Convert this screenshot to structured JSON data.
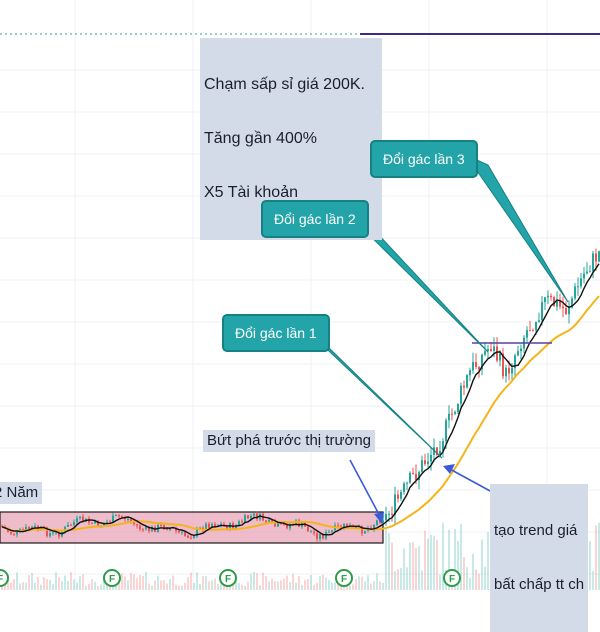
{
  "chart_data": {
    "type": "candlestick",
    "annotations": {
      "target_note": [
        "Chạm sấp sỉ giá 200K.",
        "Tăng gần 400%",
        "X5 Tài khoản"
      ],
      "callout_1": "Đổi gác lần 1",
      "callout_2": "Đổi gác lần 2",
      "callout_3": "Đổi gác lần 3",
      "breakout_note": "Bứt phá trước thị trường",
      "base_note": "2 Năm",
      "trend_note": [
        "tạo trend giá",
        "bất chấp tt ch"
      ],
      "marker_label": "F"
    },
    "colors": {
      "up": "#26a69a",
      "down": "#ef5350",
      "short_ma": "#111111",
      "long_ma": "#f5b41a",
      "base_zone": "#e9a6b9",
      "callout": "#23a4a8",
      "note_bg": "#d3dbe8",
      "target_line": "#3d2a8a",
      "arrow": "#3a5bd9"
    },
    "grid": true,
    "legend": "none"
  }
}
